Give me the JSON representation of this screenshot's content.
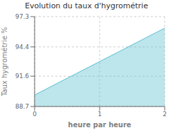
{
  "chart_data": {
    "type": "area",
    "title": "Evolution du taux d'hygrométrie",
    "xlabel": "heure par heure",
    "ylabel": "Taux hygrométrie %",
    "x": [
      0,
      2
    ],
    "values": [
      89.8,
      96.2
    ],
    "color": "#5abfcf",
    "xlim": [
      0,
      2
    ],
    "ylim": [
      88.7,
      97.3
    ],
    "xticks": [
      0,
      1,
      2
    ],
    "yticks": [
      88.7,
      91.6,
      94.4,
      97.3
    ],
    "grid": true
  }
}
